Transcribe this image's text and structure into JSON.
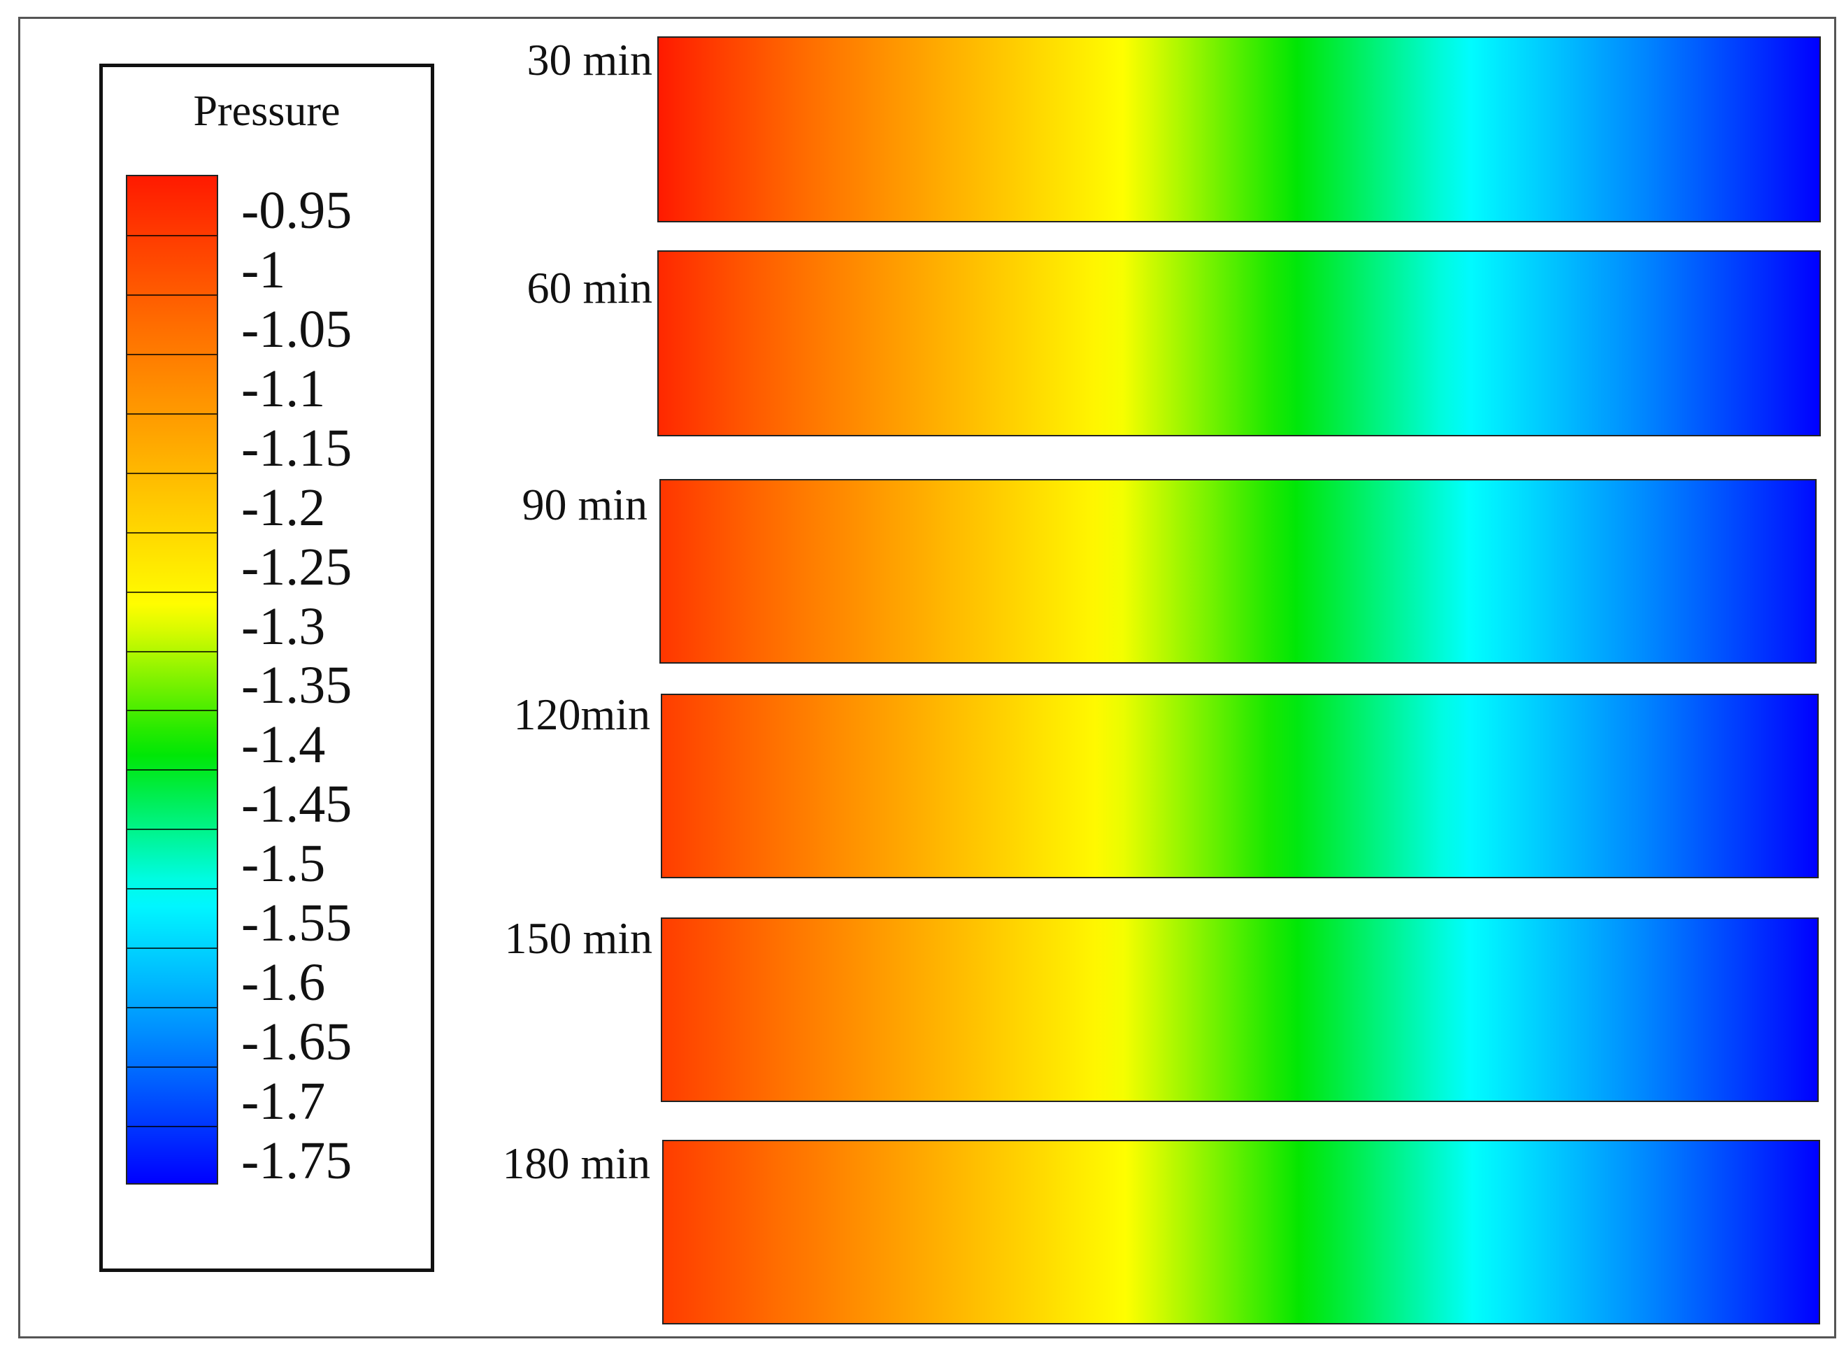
{
  "chart_data": {
    "type": "heatmap",
    "legend": {
      "title": "Pressure",
      "ticks": [
        "-0.95",
        "-1",
        "-1.05",
        "-1.1",
        "-1.15",
        "-1.2",
        "-1.25",
        "-1.3",
        "-1.35",
        "-1.4",
        "-1.45",
        "-1.5",
        "-1.55",
        "-1.6",
        "-1.65",
        "-1.7",
        "-1.75"
      ],
      "range": [
        -1.75,
        -0.95
      ],
      "levels": 17,
      "colormap": [
        "#ff1a00",
        "#ff6a00",
        "#ffb400",
        "#ffff00",
        "#00e600",
        "#00ffff",
        "#0088ff",
        "#0000ff"
      ]
    },
    "panels": [
      {
        "label": "30 min",
        "left_value": -0.95,
        "right_value": -1.75
      },
      {
        "label": "60 min",
        "left_value": -0.97,
        "right_value": -1.75
      },
      {
        "label": "90 min",
        "left_value": -0.99,
        "right_value": -1.74
      },
      {
        "label": "120min",
        "left_value": -1.0,
        "right_value": -1.75
      },
      {
        "label": "150 min",
        "left_value": -1.0,
        "right_value": -1.75
      },
      {
        "label": "180 min",
        "left_value": -1.0,
        "right_value": -1.75
      }
    ]
  }
}
